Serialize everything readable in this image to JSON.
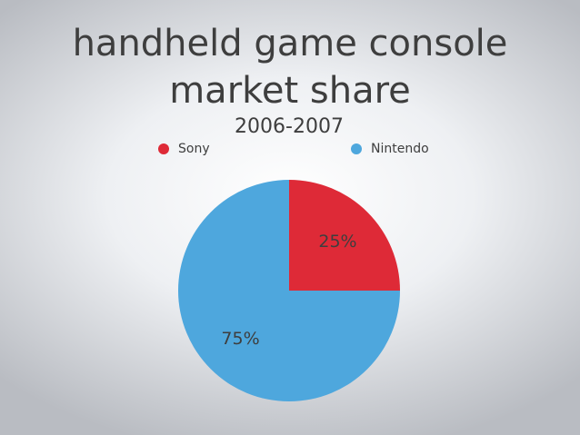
{
  "chart_data": {
    "type": "pie",
    "title": "handheld game console market share",
    "subtitle": "2006-2007",
    "categories": [
      "Sony",
      "Nintendo"
    ],
    "values": [
      25,
      75
    ],
    "value_labels": [
      "25%",
      "75%"
    ],
    "colors": [
      "#de2a37",
      "#4ea7dd"
    ],
    "legend": "top"
  }
}
